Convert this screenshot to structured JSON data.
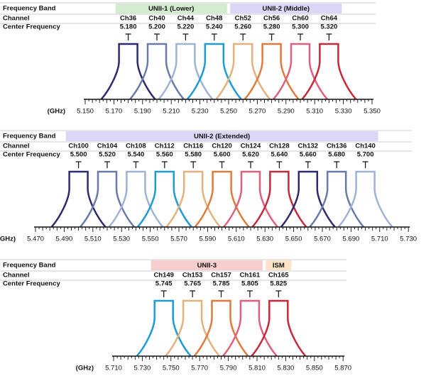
{
  "panels": [
    {
      "row_labels": {
        "band": "Frequency Band",
        "channel": "Channel",
        "center": "Center Frequency"
      },
      "bands": [
        {
          "label": "UNII-1 (Lower)",
          "color": "#d3ebcf"
        },
        {
          "label": "UNII-2 (Middle)",
          "color": "#dcd7f7"
        }
      ],
      "channels": [
        {
          "name": "Ch36",
          "freq": "5.180",
          "color": "#2e2a6e"
        },
        {
          "name": "Ch40",
          "freq": "5.200",
          "color": "#6b7ba8"
        },
        {
          "name": "Ch44",
          "freq": "5.220",
          "color": "#9fb3d4"
        },
        {
          "name": "Ch48",
          "freq": "5.240",
          "color": "#1b9bd7"
        },
        {
          "name": "Ch52",
          "freq": "5.260",
          "color": "#e6b07c"
        },
        {
          "name": "Ch56",
          "freq": "5.280",
          "color": "#e07b3a"
        },
        {
          "name": "Ch60",
          "freq": "5.300",
          "color": "#e0607c"
        },
        {
          "name": "Ch64",
          "freq": "5.320",
          "color": "#c8283a"
        }
      ],
      "axis_unit": "(GHz)",
      "axis_labels": [
        "5.150",
        "5.170",
        "5.190",
        "5.210",
        "5.230",
        "5.250",
        "5.270",
        "5.290",
        "5.310",
        "5.330",
        "5.350"
      ]
    },
    {
      "row_labels": {
        "band": "Frequency Band",
        "channel": "Channel",
        "center": "Center Frequency"
      },
      "bands": [
        {
          "label": "UNII-2 (Extended)",
          "color": "#dcd7f7"
        }
      ],
      "channels": [
        {
          "name": "Ch100",
          "freq": "5.500",
          "color": "#2e2a6e"
        },
        {
          "name": "Ch104",
          "freq": "5.520",
          "color": "#6b7ba8"
        },
        {
          "name": "Ch108",
          "freq": "5.540",
          "color": "#9fb3d4"
        },
        {
          "name": "Ch112",
          "freq": "5.560",
          "color": "#1b9bd7"
        },
        {
          "name": "Ch116",
          "freq": "5.580",
          "color": "#e6b07c"
        },
        {
          "name": "Ch120",
          "freq": "5.600",
          "color": "#e07b3a"
        },
        {
          "name": "Ch124",
          "freq": "5.620",
          "color": "#e0607c"
        },
        {
          "name": "Ch128",
          "freq": "5.640",
          "color": "#c8283a"
        },
        {
          "name": "Ch132",
          "freq": "5.660",
          "color": "#2e2a6e"
        },
        {
          "name": "Ch136",
          "freq": "5.680",
          "color": "#6b7ba8"
        },
        {
          "name": "Ch140",
          "freq": "5.700",
          "color": "#9fb3d4"
        }
      ],
      "axis_unit": "(GHz)",
      "axis_labels": [
        "5.470",
        "5.490",
        "5.510",
        "5.530",
        "5.550",
        "5.570",
        "5.590",
        "5.610",
        "5.630",
        "5.650",
        "5.670",
        "5.690",
        "5.710",
        "5.730"
      ]
    },
    {
      "row_labels": {
        "band": "Frequency Band",
        "channel": "Channel",
        "center": "Center Frequency"
      },
      "bands": [
        {
          "label": "UNII-3",
          "color": "#f8cdcd"
        },
        {
          "label": "ISM",
          "color": "#fde3c8"
        }
      ],
      "channels": [
        {
          "name": "Ch149",
          "freq": "5.745",
          "color": "#1b9bd7"
        },
        {
          "name": "Ch153",
          "freq": "5.765",
          "color": "#e6b07c"
        },
        {
          "name": "Ch157",
          "freq": "5.785",
          "color": "#e07b3a"
        },
        {
          "name": "Ch161",
          "freq": "5.805",
          "color": "#e0607c"
        },
        {
          "name": "Ch165",
          "freq": "5.825",
          "color": "#c8283a"
        }
      ],
      "axis_unit": "(GHz)",
      "axis_labels": [
        "5.710",
        "5.730",
        "5.750",
        "5.770",
        "5.790",
        "5.810",
        "5.830",
        "5.850",
        "5.870"
      ]
    }
  ]
}
